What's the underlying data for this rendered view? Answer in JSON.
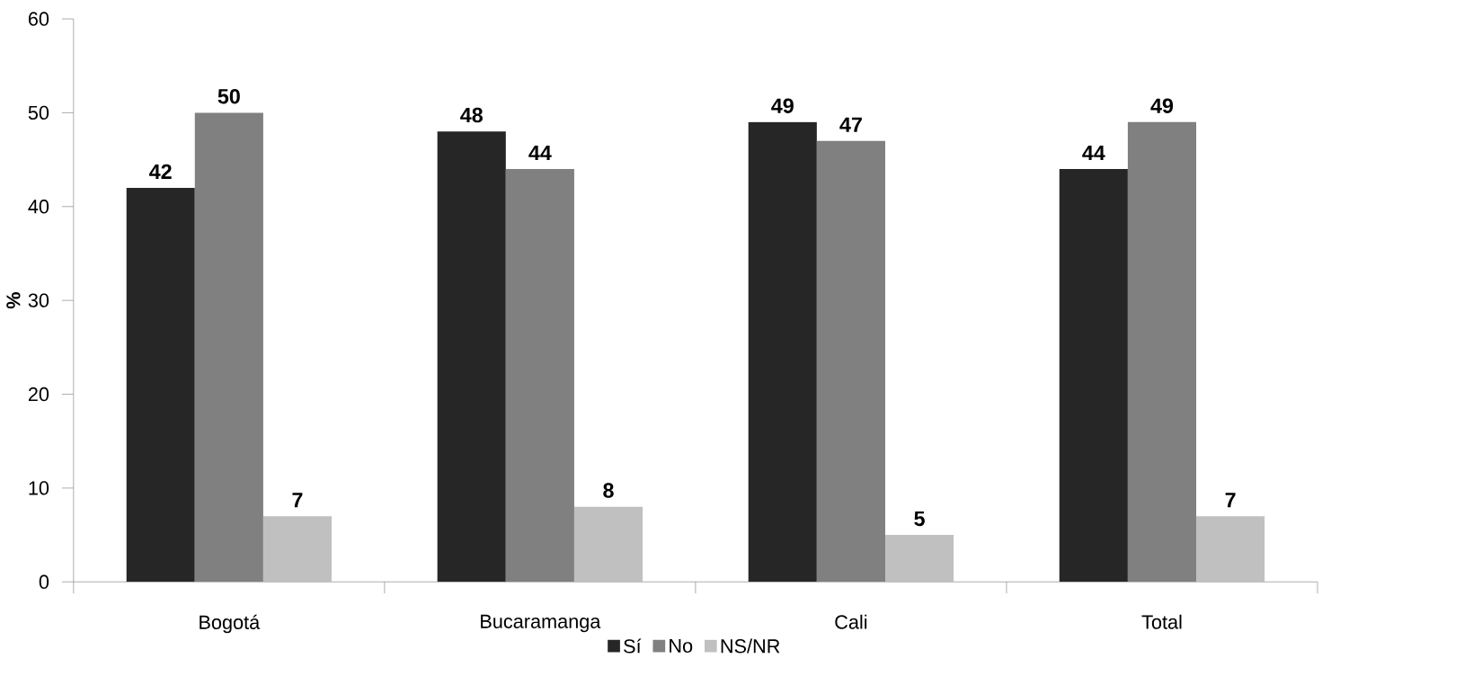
{
  "chart_data": {
    "type": "bar",
    "ylabel": "%",
    "categories": [
      "Bogotá",
      "Bucaramanga",
      "Cali",
      "Total"
    ],
    "series": [
      {
        "name": "Sí",
        "color": "#262626",
        "values": [
          42,
          48,
          49,
          44
        ]
      },
      {
        "name": "No",
        "color": "#808080",
        "values": [
          50,
          44,
          47,
          49
        ]
      },
      {
        "name": "NS/NR",
        "color": "#c0c0c0",
        "values": [
          7,
          8,
          5,
          7
        ]
      }
    ],
    "ylim": [
      0,
      60
    ],
    "yticks": [
      0,
      10,
      20,
      30,
      40,
      50,
      60
    ],
    "data_labels": true,
    "legend": "bottom"
  }
}
